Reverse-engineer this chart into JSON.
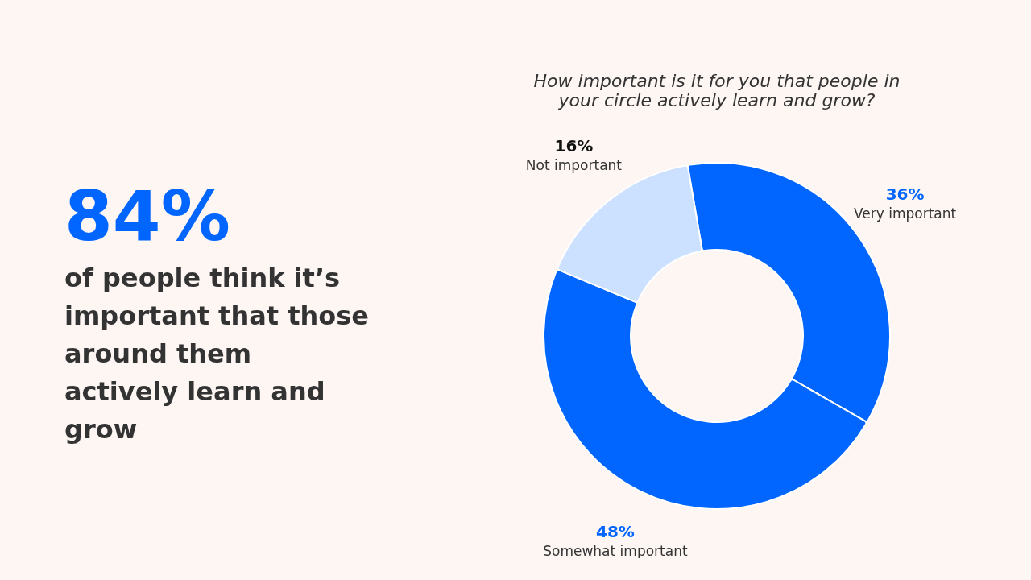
{
  "chart_data": {
    "type": "donut",
    "title": "How important is it for you that people in\nyour circle actively learn and grow?",
    "categories": [
      "Very important",
      "Somewhat important",
      "Not important"
    ],
    "values": [
      36,
      48,
      16
    ],
    "colors": [
      "#0066ff",
      "#0066ff",
      "#cce0ff"
    ],
    "value_labels": [
      "36%",
      "48%",
      "16%"
    ],
    "legend": false,
    "annotations": [
      "84%",
      "of people think it’s important that those around them actively learn and grow"
    ]
  }
}
